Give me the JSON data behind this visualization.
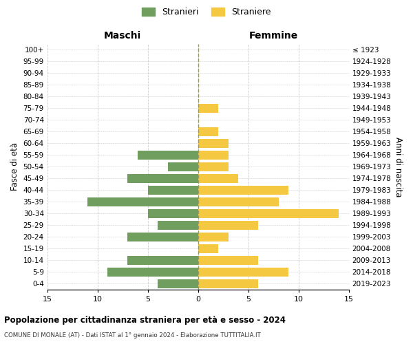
{
  "age_groups": [
    "0-4",
    "5-9",
    "10-14",
    "15-19",
    "20-24",
    "25-29",
    "30-34",
    "35-39",
    "40-44",
    "45-49",
    "50-54",
    "55-59",
    "60-64",
    "65-69",
    "70-74",
    "75-79",
    "80-84",
    "85-89",
    "90-94",
    "95-99",
    "100+"
  ],
  "birth_years": [
    "2019-2023",
    "2014-2018",
    "2009-2013",
    "2004-2008",
    "1999-2003",
    "1994-1998",
    "1989-1993",
    "1984-1988",
    "1979-1983",
    "1974-1978",
    "1969-1973",
    "1964-1968",
    "1959-1963",
    "1954-1958",
    "1949-1953",
    "1944-1948",
    "1939-1943",
    "1934-1938",
    "1929-1933",
    "1924-1928",
    "≤ 1923"
  ],
  "males": [
    4,
    9,
    7,
    0,
    7,
    4,
    5,
    11,
    5,
    7,
    3,
    6,
    0,
    0,
    0,
    0,
    0,
    0,
    0,
    0,
    0
  ],
  "females": [
    6,
    9,
    6,
    2,
    3,
    6,
    14,
    8,
    9,
    4,
    3,
    3,
    3,
    2,
    0,
    2,
    0,
    0,
    0,
    0,
    0
  ],
  "male_color": "#6f9e5e",
  "female_color": "#f5c842",
  "title": "Popolazione per cittadinanza straniera per età e sesso - 2024",
  "subtitle": "COMUNE DI MONALE (AT) - Dati ISTAT al 1° gennaio 2024 - Elaborazione TUTTITALIA.IT",
  "xlabel_left": "Maschi",
  "xlabel_right": "Femmine",
  "ylabel_left": "Fasce di età",
  "ylabel_right": "Anni di nascita",
  "legend_male": "Stranieri",
  "legend_female": "Straniere",
  "xlim": 15,
  "background_color": "#ffffff",
  "grid_color": "#cccccc"
}
